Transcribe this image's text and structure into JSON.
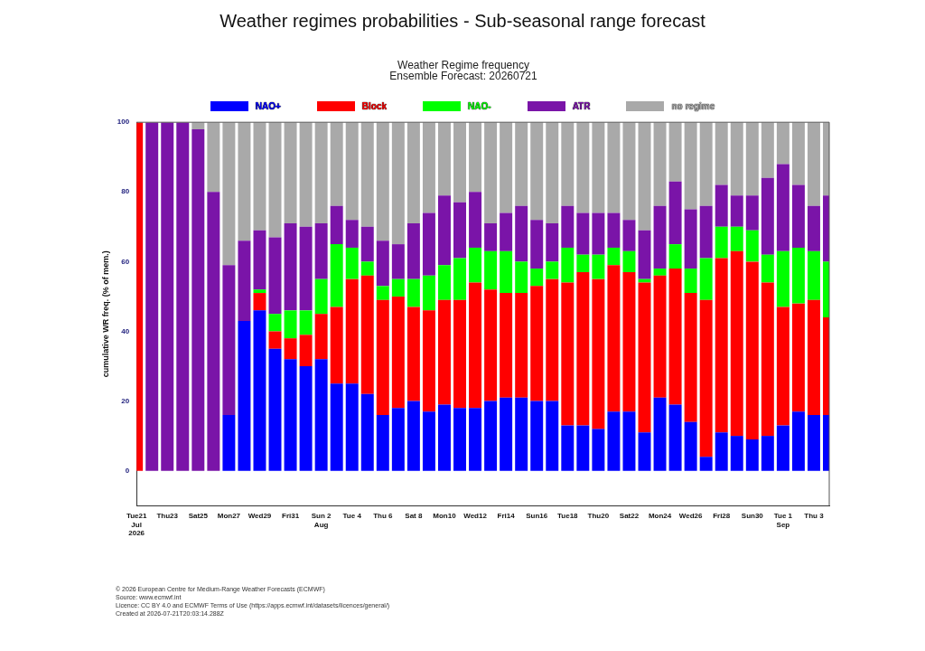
{
  "chart_data": {
    "type": "bar",
    "title": "Weather regimes probabilities - Sub-seasonal range forecast",
    "subtitle": "Weather Regime frequency\nEnsemble Forecast: 20260721",
    "ylabel": "cumulative WR freq. (% of mem.)",
    "categories": [
      "Tue21\nJul\n2026",
      null,
      "Thu23",
      null,
      "Sat25",
      null,
      "Mon27",
      null,
      "Wed29",
      null,
      "Fri31",
      null,
      "Sun 2\nAug",
      null,
      "Tue 4",
      null,
      "Thu 6",
      null,
      "Sat 8",
      null,
      "Mon10",
      null,
      "Wed12",
      null,
      "Fri14",
      null,
      "Sun16",
      null,
      "Tue18",
      null,
      "Thu20",
      null,
      "Sat22",
      null,
      "Mon24",
      null,
      "Wed26",
      null,
      "Fri28",
      null,
      "Sun30",
      null,
      "Tue 1\nSep",
      null,
      "Thu 3",
      null
    ],
    "series": [
      {
        "name": "NAO+",
        "color": "#0000ff",
        "values": [
          0,
          0,
          0,
          0,
          0,
          0,
          16,
          43,
          46,
          35,
          32,
          30,
          32,
          25,
          25,
          22,
          16,
          18,
          20,
          17,
          19,
          18,
          18,
          20,
          21,
          21,
          20,
          20,
          13,
          13,
          12,
          17,
          17,
          11,
          21,
          19,
          14,
          4,
          11,
          10,
          9,
          10,
          13,
          17,
          16,
          16
        ]
      },
      {
        "name": "Block",
        "color": "#ff0000",
        "values": [
          100,
          0,
          0,
          0,
          0,
          0,
          0,
          0,
          5,
          5,
          6,
          9,
          13,
          22,
          30,
          34,
          33,
          32,
          27,
          29,
          30,
          31,
          36,
          32,
          30,
          30,
          33,
          35,
          41,
          44,
          43,
          42,
          40,
          43,
          35,
          39,
          37,
          45,
          50,
          53,
          51,
          44,
          34,
          31,
          33,
          28
        ]
      },
      {
        "name": "NAO-",
        "color": "#00ff00",
        "values": [
          0,
          0,
          0,
          0,
          0,
          0,
          0,
          0,
          1,
          5,
          8,
          7,
          10,
          18,
          9,
          4,
          4,
          5,
          8,
          10,
          10,
          12,
          10,
          11,
          12,
          9,
          5,
          5,
          10,
          5,
          7,
          5,
          6,
          1,
          2,
          7,
          7,
          12,
          9,
          7,
          9,
          8,
          16,
          16,
          14,
          16
        ]
      },
      {
        "name": "ATR",
        "color": "#7a14a8",
        "values": [
          0,
          100,
          100,
          100,
          98,
          80,
          43,
          23,
          17,
          22,
          25,
          24,
          16,
          11,
          8,
          10,
          13,
          10,
          16,
          18,
          20,
          16,
          16,
          8,
          11,
          16,
          14,
          11,
          12,
          12,
          12,
          10,
          9,
          14,
          18,
          18,
          17,
          15,
          12,
          9,
          10,
          22,
          25,
          18,
          13,
          19
        ]
      },
      {
        "name": "no regime",
        "color": "#a9a9a9",
        "values": [
          0,
          0,
          0,
          0,
          2,
          20,
          41,
          34,
          31,
          33,
          29,
          30,
          29,
          24,
          28,
          30,
          34,
          35,
          29,
          26,
          21,
          23,
          20,
          29,
          26,
          24,
          28,
          29,
          24,
          26,
          26,
          26,
          28,
          31,
          24,
          17,
          25,
          24,
          18,
          21,
          21,
          16,
          12,
          18,
          24,
          21
        ]
      }
    ],
    "stacked": true,
    "ylim": [
      -10,
      100
    ],
    "yticks": [
      0,
      20,
      40,
      60,
      80,
      100
    ],
    "legend": "top",
    "annotations": [
      "© 2026 European Centre for Medium-Range Weather Forecasts (ECMWF)",
      "Source: www.ecmwf.int",
      "Licence: CC BY 4.0 and ECMWF Terms of Use (https://apps.ecmwf.int/datasets/licences/general/)",
      "Created at 2026-07-21T20:03:14.288Z"
    ]
  }
}
